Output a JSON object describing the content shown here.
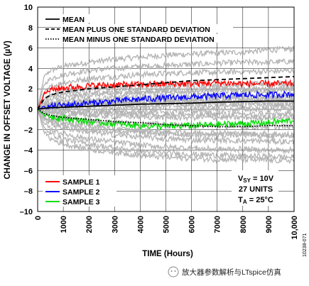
{
  "chart_data": {
    "type": "line",
    "xlabel": "TIME (Hours)",
    "ylabel": "CHANGE IN OFFSET VOLTAGE (µV)",
    "xlim": [
      0,
      10000
    ],
    "ylim": [
      -10,
      10
    ],
    "x_ticks": [
      "0",
      "1000",
      "2000",
      "3000",
      "4000",
      "5000",
      "6000",
      "7000",
      "8000",
      "9000",
      "10,000"
    ],
    "y_ticks": [
      "10",
      "8",
      "6",
      "4",
      "2",
      "0",
      "–2",
      "–4",
      "–6",
      "–8",
      "–10"
    ],
    "grid": true,
    "legend_top": {
      "placement": "top-left",
      "entries": [
        "MEAN",
        "MEAN PLUS ONE STANDARD DEVIATION",
        "MEAN MINUS ONE STANDARD DEVIATION"
      ]
    },
    "legend_bottom": {
      "placement": "bottom-left",
      "entries": [
        "SAMPLE 1",
        "SAMPLE 2",
        "SAMPLE 3"
      ]
    },
    "conditions": [
      "V_SY = 10V",
      "27 UNITS",
      "T_A = 25°C"
    ],
    "x": [
      0,
      250,
      500,
      1000,
      2000,
      3000,
      4000,
      5000,
      6000,
      7000,
      8000,
      9000,
      10000
    ],
    "series": [
      {
        "name": "MEAN",
        "color": "#000000",
        "style": "solid",
        "values": [
          0,
          0.1,
          0.15,
          0.2,
          0.3,
          0.4,
          0.5,
          0.55,
          0.6,
          0.7,
          0.75,
          0.8,
          0.8
        ]
      },
      {
        "name": "MEAN PLUS ONE STANDARD DEVIATION",
        "color": "#000000",
        "style": "dashed",
        "values": [
          0,
          1.0,
          1.4,
          1.7,
          2.0,
          2.2,
          2.4,
          2.6,
          2.8,
          2.9,
          3.0,
          3.1,
          3.2
        ]
      },
      {
        "name": "MEAN MINUS ONE STANDARD DEVIATION",
        "color": "#000000",
        "style": "dotted",
        "values": [
          0,
          -0.4,
          -0.6,
          -0.8,
          -1.0,
          -1.2,
          -1.3,
          -1.5,
          -1.6,
          -1.7,
          -1.7,
          -1.6,
          -1.6
        ]
      },
      {
        "name": "SAMPLE 1",
        "color": "#ff0000",
        "style": "noisy",
        "values": [
          0,
          1.5,
          1.9,
          2.1,
          2.3,
          2.4,
          2.4,
          2.5,
          2.5,
          2.6,
          2.5,
          2.5,
          2.5
        ]
      },
      {
        "name": "SAMPLE 2",
        "color": "#0000ff",
        "style": "noisy",
        "values": [
          0,
          0.2,
          0.3,
          0.4,
          0.6,
          0.8,
          1.0,
          1.1,
          1.2,
          1.3,
          1.4,
          1.4,
          1.5
        ]
      },
      {
        "name": "SAMPLE 3",
        "color": "#00dd00",
        "style": "noisy",
        "values": [
          0,
          -0.5,
          -0.7,
          -0.9,
          -1.2,
          -1.4,
          -1.6,
          -1.7,
          -1.6,
          -1.5,
          -1.4,
          -1.3,
          -1.1
        ]
      }
    ],
    "other_units": [
      [
        0,
        3.2,
        3.8,
        4.2,
        4.6,
        4.9,
        5.1,
        5.3,
        5.4,
        5.5,
        5.6,
        5.8,
        5.9
      ],
      [
        0,
        2.4,
        3.0,
        3.4,
        3.8,
        4.0,
        4.2,
        4.3,
        4.4,
        4.5,
        4.6,
        4.6,
        4.7
      ],
      [
        0,
        1.6,
        2.2,
        2.6,
        3.0,
        3.2,
        3.4,
        3.5,
        3.6,
        3.6,
        3.7,
        3.7,
        3.8
      ],
      [
        0,
        1.0,
        1.4,
        1.7,
        2.0,
        2.2,
        2.3,
        2.3,
        2.4,
        2.4,
        2.4,
        2.5,
        2.5
      ],
      [
        0,
        0.6,
        0.9,
        1.1,
        1.4,
        1.5,
        1.6,
        1.7,
        1.7,
        1.8,
        1.8,
        1.8,
        1.9
      ],
      [
        0,
        0.4,
        0.6,
        0.8,
        1.0,
        1.1,
        1.2,
        1.2,
        1.3,
        1.3,
        1.3,
        1.3,
        1.4
      ],
      [
        0,
        0.3,
        0.5,
        0.6,
        0.7,
        0.8,
        0.8,
        0.9,
        0.9,
        0.9,
        1.0,
        1.0,
        1.0
      ],
      [
        0,
        0.1,
        0.2,
        0.3,
        0.4,
        0.5,
        0.5,
        0.6,
        0.6,
        0.6,
        0.6,
        0.7,
        0.7
      ],
      [
        0,
        0.0,
        0.1,
        0.1,
        0.2,
        0.2,
        0.3,
        0.3,
        0.3,
        0.3,
        0.3,
        0.4,
        0.4
      ],
      [
        0,
        -0.1,
        -0.2,
        -0.2,
        -0.2,
        -0.2,
        -0.2,
        -0.2,
        -0.1,
        -0.1,
        0.0,
        0.0,
        0.0
      ],
      [
        0,
        -0.3,
        -0.4,
        -0.5,
        -0.6,
        -0.7,
        -0.7,
        -0.8,
        -0.8,
        -0.8,
        -0.8,
        -0.8,
        -0.8
      ],
      [
        0,
        -0.5,
        -0.7,
        -0.9,
        -1.1,
        -1.3,
        -1.4,
        -1.5,
        -1.6,
        -1.6,
        -1.7,
        -1.7,
        -1.7
      ],
      [
        0,
        -0.7,
        -1.0,
        -1.3,
        -1.6,
        -1.9,
        -2.1,
        -2.2,
        -2.3,
        -2.3,
        -2.4,
        -2.4,
        -2.5
      ],
      [
        0,
        -1.0,
        -1.4,
        -1.8,
        -2.2,
        -2.5,
        -2.7,
        -2.9,
        -3.0,
        -3.0,
        -3.1,
        -3.1,
        -3.2
      ],
      [
        0,
        -1.4,
        -1.9,
        -2.4,
        -2.9,
        -3.2,
        -3.5,
        -3.7,
        -3.8,
        -3.9,
        -3.9,
        -4.0,
        -4.0
      ],
      [
        0,
        -1.8,
        -2.4,
        -2.9,
        -3.4,
        -3.8,
        -4.1,
        -4.3,
        -4.4,
        -4.5,
        -4.6,
        -4.6,
        -4.7
      ],
      [
        0,
        -2.2,
        -2.9,
        -3.4,
        -3.9,
        -4.2,
        -4.5,
        -4.7,
        -4.8,
        -4.9,
        -4.9,
        -5.0,
        -5.0
      ],
      [
        0,
        0.8,
        1.2,
        1.5,
        1.6,
        1.7,
        1.8,
        1.9,
        1.9,
        2.0,
        2.0,
        2.0,
        2.1
      ],
      [
        0,
        -0.2,
        -0.3,
        -0.3,
        -0.4,
        -0.4,
        -0.4,
        -0.5,
        -0.5,
        -0.5,
        -0.5,
        -0.5,
        -0.5
      ],
      [
        0,
        0.2,
        0.4,
        0.5,
        0.6,
        0.7,
        0.7,
        0.8,
        0.8,
        0.8,
        0.8,
        0.9,
        0.9
      ],
      [
        0,
        -0.8,
        -1.2,
        -1.5,
        -1.9,
        -2.1,
        -2.3,
        -2.4,
        -2.5,
        -2.5,
        -2.5,
        -2.6,
        -2.6
      ]
    ],
    "other_units_color": "#b4b4b4"
  },
  "figure_id": "10238-071",
  "watermark": "放大器参数解析与LTspice仿真"
}
